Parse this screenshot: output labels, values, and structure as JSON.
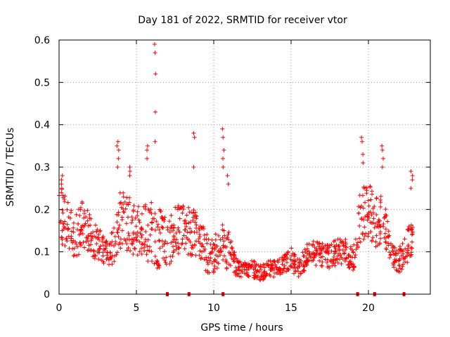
{
  "chart_data": {
    "type": "scatter",
    "title": "Day 181 of 2022, SRMTID for receiver vtor",
    "xlabel": "GPS time / hours",
    "ylabel": "SRMTID / TECUs",
    "xlim": [
      0,
      24
    ],
    "ylim": [
      0,
      0.6
    ],
    "xticks": [
      0,
      5,
      10,
      15,
      20
    ],
    "yticks": [
      0,
      0.1,
      0.2,
      0.3,
      0.4,
      0.5,
      0.6
    ],
    "xtick_labels": [
      "0",
      "5",
      "10",
      "15",
      "20"
    ],
    "ytick_labels": [
      "0",
      "0.1",
      "0.2",
      "0.3",
      "0.4",
      "0.5",
      "0.6"
    ],
    "grid": true,
    "marker": "plus",
    "series_color": "#ff0000",
    "envelope": {
      "x": [
        0.0,
        0.5,
        1.0,
        1.5,
        2.0,
        2.5,
        3.0,
        3.5,
        4.0,
        4.5,
        5.0,
        5.5,
        6.0,
        6.5,
        7.0,
        7.5,
        8.0,
        8.5,
        9.0,
        9.5,
        10.0,
        10.5,
        11.0,
        11.5,
        12.0,
        12.5,
        13.0,
        13.5,
        14.0,
        14.5,
        15.0,
        15.5,
        16.0,
        16.5,
        17.0,
        17.5,
        18.0,
        18.5,
        19.0,
        19.5,
        20.0,
        20.5,
        21.0,
        21.5,
        22.0,
        22.5,
        22.9
      ],
      "y_mean": [
        0.19,
        0.17,
        0.13,
        0.16,
        0.14,
        0.12,
        0.1,
        0.11,
        0.18,
        0.17,
        0.15,
        0.15,
        0.14,
        0.13,
        0.12,
        0.15,
        0.16,
        0.15,
        0.14,
        0.1,
        0.09,
        0.12,
        0.1,
        0.06,
        0.06,
        0.06,
        0.05,
        0.06,
        0.06,
        0.07,
        0.08,
        0.06,
        0.09,
        0.1,
        0.09,
        0.09,
        0.1,
        0.1,
        0.08,
        0.18,
        0.2,
        0.17,
        0.18,
        0.09,
        0.08,
        0.11,
        0.14
      ],
      "y_spread": [
        0.07,
        0.06,
        0.05,
        0.06,
        0.05,
        0.04,
        0.03,
        0.04,
        0.07,
        0.07,
        0.06,
        0.06,
        0.08,
        0.07,
        0.06,
        0.06,
        0.06,
        0.06,
        0.05,
        0.05,
        0.04,
        0.06,
        0.05,
        0.02,
        0.02,
        0.02,
        0.02,
        0.02,
        0.02,
        0.02,
        0.03,
        0.02,
        0.03,
        0.03,
        0.03,
        0.03,
        0.03,
        0.03,
        0.03,
        0.07,
        0.07,
        0.06,
        0.06,
        0.03,
        0.03,
        0.04,
        0.06
      ],
      "points_per_step": 26
    },
    "peaks": [
      {
        "x": 0.2,
        "values": [
          0.28,
          0.27,
          0.26,
          0.25
        ]
      },
      {
        "x": 3.8,
        "values": [
          0.36,
          0.35,
          0.34,
          0.32,
          0.3
        ]
      },
      {
        "x": 4.6,
        "values": [
          0.3,
          0.29,
          0.28
        ]
      },
      {
        "x": 6.2,
        "values": [
          0.59,
          0.57,
          0.52,
          0.43,
          0.36
        ]
      },
      {
        "x": 5.7,
        "values": [
          0.35,
          0.34,
          0.32
        ]
      },
      {
        "x": 8.7,
        "values": [
          0.38,
          0.37,
          0.3
        ]
      },
      {
        "x": 10.6,
        "values": [
          0.39,
          0.37,
          0.34,
          0.32,
          0.3
        ]
      },
      {
        "x": 10.9,
        "values": [
          0.28,
          0.26
        ]
      },
      {
        "x": 19.6,
        "values": [
          0.37,
          0.36,
          0.33,
          0.31
        ]
      },
      {
        "x": 20.9,
        "values": [
          0.35,
          0.34,
          0.32,
          0.3
        ]
      },
      {
        "x": 22.8,
        "values": [
          0.29,
          0.28,
          0.27,
          0.25
        ]
      }
    ],
    "baseline_markers": [
      7.0,
      8.4,
      10.6,
      19.3,
      20.4,
      22.3
    ]
  }
}
